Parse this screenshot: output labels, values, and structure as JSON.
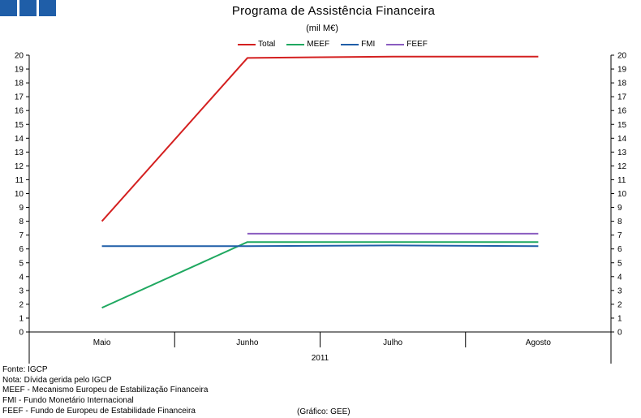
{
  "header": {
    "logo_color": "#1f5ea8",
    "title": "Programa de Assistência Financeira",
    "subtitle": "(mil M€)"
  },
  "chart_data": {
    "type": "line",
    "categories": [
      "Maio",
      "Junho",
      "Julho",
      "Agosto"
    ],
    "group_label": "2011",
    "ylim": [
      0,
      20
    ],
    "yticks": [
      0,
      1,
      2,
      3,
      4,
      5,
      6,
      7,
      8,
      9,
      10,
      11,
      12,
      13,
      14,
      15,
      16,
      17,
      18,
      19,
      20
    ],
    "dual_y_axis": true,
    "grid": false,
    "legend_position": "top-center",
    "series": [
      {
        "name": "Total",
        "color": "#d42020",
        "values": [
          8.0,
          19.8,
          19.9,
          19.9
        ]
      },
      {
        "name": "MEEF",
        "color": "#1fa860",
        "values": [
          1.75,
          6.5,
          6.5,
          6.5
        ]
      },
      {
        "name": "FMI",
        "color": "#1f5ea8",
        "values": [
          6.2,
          6.2,
          6.25,
          6.2
        ]
      },
      {
        "name": "FEEF",
        "color": "#8a5cc0",
        "values": [
          null,
          7.1,
          7.1,
          7.1
        ]
      }
    ]
  },
  "notes": [
    "Fonte: IGCP",
    "Nota: Dívida gerida pelo IGCP",
    "MEEF - Mecanismo Europeu de Estabilização Financeira",
    "FMI - Fundo Monetário Internacional",
    "FEEF - Fundo de Europeu de Estabilidade Financeira"
  ],
  "credit": "(Gráfico: GEE)"
}
